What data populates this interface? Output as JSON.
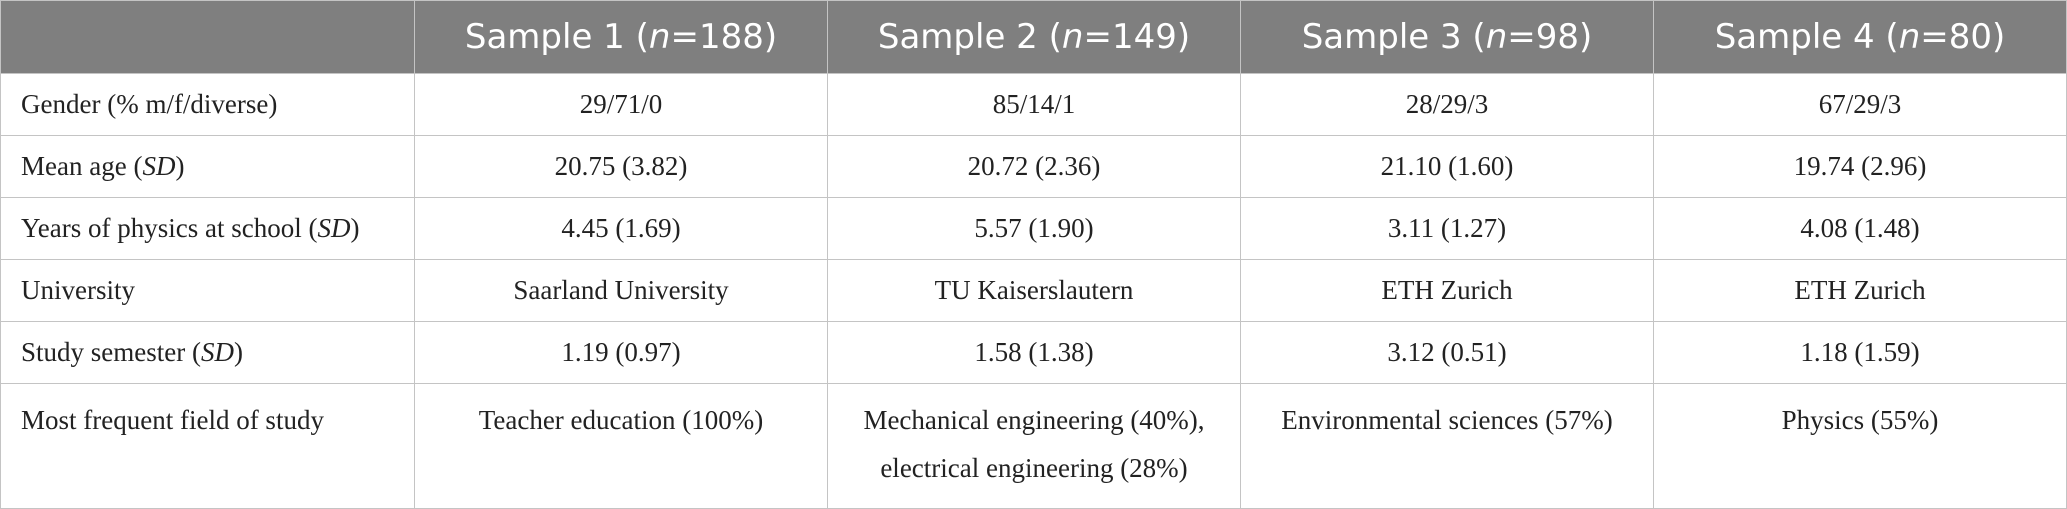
{
  "table": {
    "header": [
      [
        "Sample 1 (",
        "n",
        "=188)"
      ],
      [
        "Sample 2 (",
        "n",
        "=149)"
      ],
      [
        "Sample 3 (",
        "n",
        "=98)"
      ],
      [
        "Sample 4 (",
        "n",
        "=80)"
      ]
    ],
    "rows": [
      [
        [
          "Gender (% m/f/diverse)"
        ],
        [
          "29/71/0"
        ],
        [
          "85/14/1"
        ],
        [
          "28/29/3"
        ],
        [
          "67/29/3"
        ]
      ],
      [
        [
          "Mean age (",
          "SD",
          ")"
        ],
        [
          "20.75 (3.82)"
        ],
        [
          "20.72 (2.36)"
        ],
        [
          "21.10 (1.60)"
        ],
        [
          "19.74 (2.96)"
        ]
      ],
      [
        [
          "Years of physics at school (",
          "SD",
          ")"
        ],
        [
          "4.45 (1.69)"
        ],
        [
          "5.57 (1.90)"
        ],
        [
          "3.11 (1.27)"
        ],
        [
          "4.08 (1.48)"
        ]
      ],
      [
        [
          "University"
        ],
        [
          "Saarland University"
        ],
        [
          "TU Kaiserslautern"
        ],
        [
          "ETH Zurich"
        ],
        [
          "ETH Zurich"
        ]
      ],
      [
        [
          "Study semester (",
          "SD",
          ")"
        ],
        [
          "1.19 (0.97)"
        ],
        [
          "1.58 (1.38)"
        ],
        [
          "3.12 (0.51)"
        ],
        [
          "1.18 (1.59)"
        ]
      ],
      [
        [
          "Most frequent field of study"
        ],
        [
          "Teacher education (100%)"
        ],
        [
          "Mechanical engineering (40%),\nelectrical engineering (28%)"
        ],
        [
          "Environmental sciences (57%)"
        ],
        [
          "Physics (55%)"
        ]
      ]
    ]
  }
}
